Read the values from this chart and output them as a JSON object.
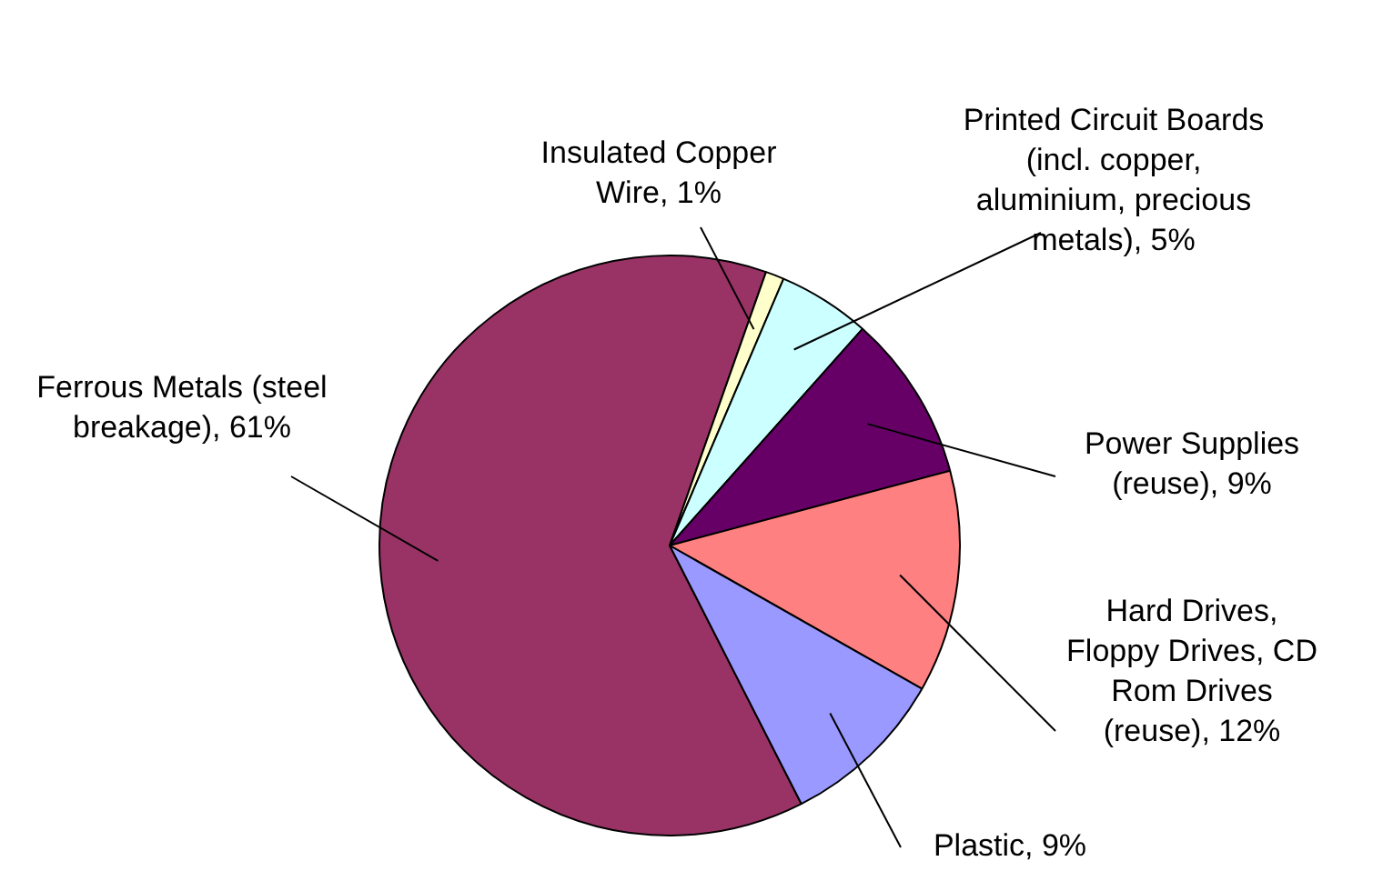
{
  "chart_data": {
    "type": "pie",
    "categories": [
      "Ferrous Metals (steel breakage)",
      "Insulated Copper Wire",
      "Printed Circuit Boards (incl. copper, aluminium, precious metals)",
      "Power Supplies (reuse)",
      "Hard Drives, Floppy Drives, CD Rom Drives (reuse)",
      "Plastic"
    ],
    "values": [
      61,
      1,
      5,
      9,
      12,
      9
    ],
    "value_labels": [
      "61%",
      "1%",
      "5%",
      "9%",
      "12%",
      "9%"
    ],
    "colors": [
      "#993366",
      "#ffffcc",
      "#ccffff",
      "#660066",
      "#ff8080",
      "#9999ff"
    ],
    "legend": false
  }
}
